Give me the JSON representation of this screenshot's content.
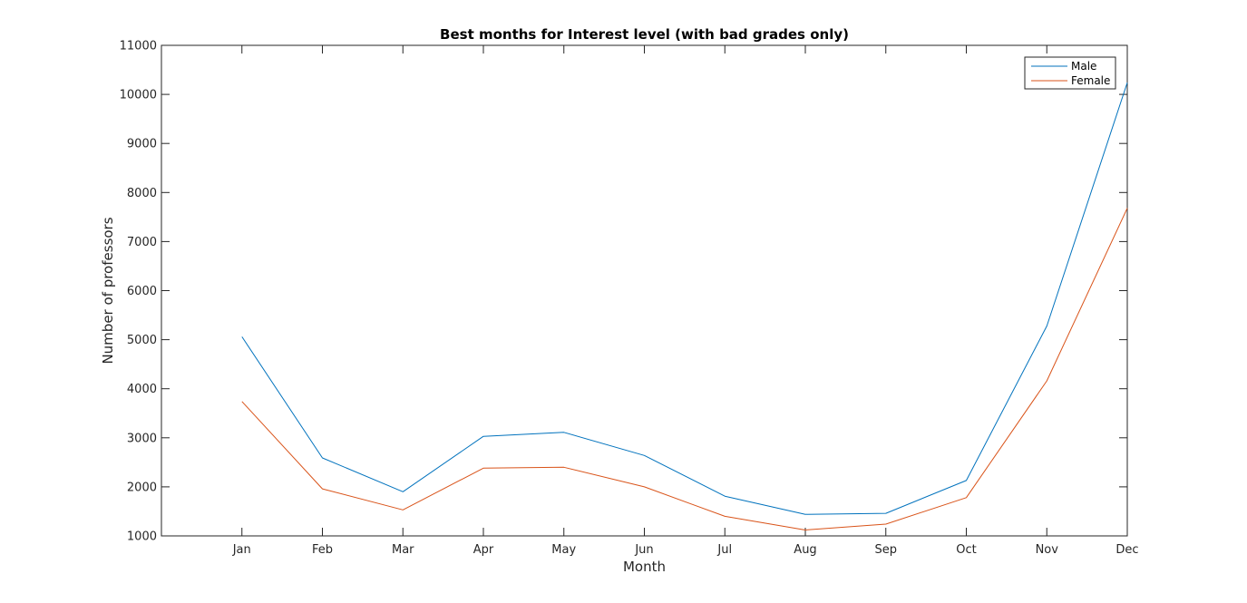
{
  "chart_data": {
    "type": "line",
    "title": "Best months for Interest level (with bad grades only)",
    "xlabel": "Month",
    "ylabel": "Number of professors",
    "categories": [
      "Jan",
      "Feb",
      "Mar",
      "Apr",
      "May",
      "Jun",
      "Jul",
      "Aug",
      "Sep",
      "Oct",
      "Nov",
      "Dec"
    ],
    "xlim": [
      0,
      12
    ],
    "ylim": [
      1000,
      11000
    ],
    "yticks": [
      "1000",
      "2000",
      "3000",
      "4000",
      "5000",
      "6000",
      "7000",
      "8000",
      "9000",
      "10000",
      "11000"
    ],
    "grid": false,
    "legend_position": "top-right",
    "series": [
      {
        "name": "Male",
        "color": "#0072BD",
        "values": [
          5060,
          2590,
          1900,
          3030,
          3110,
          2640,
          1810,
          1440,
          1460,
          2130,
          5280,
          10240
        ]
      },
      {
        "name": "Female",
        "color": "#D95319",
        "values": [
          3740,
          1960,
          1530,
          2380,
          2400,
          2000,
          1400,
          1120,
          1240,
          1780,
          4160,
          7680
        ]
      }
    ]
  }
}
